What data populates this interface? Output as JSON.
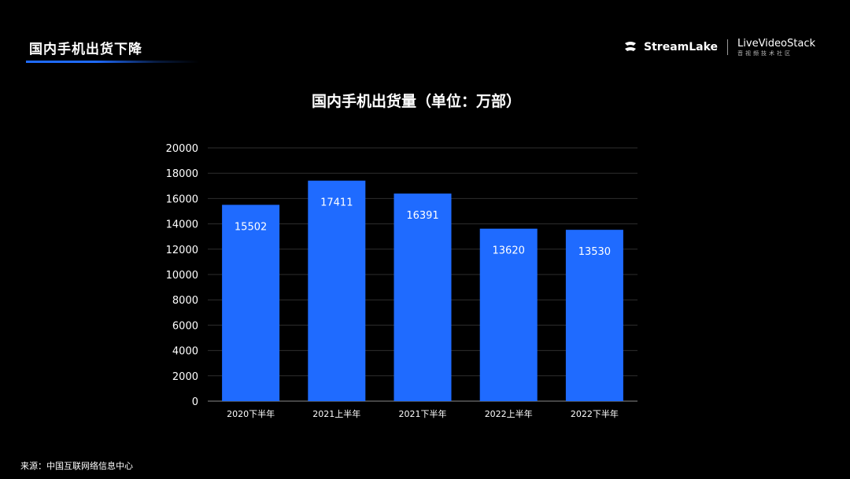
{
  "header": {
    "slide_title": "国内手机出货下降",
    "logo_streamlake": "StreamLake",
    "logo_livevideostack": "LiveVideoStack",
    "logo_livevideostack_sub": "音视频技术社区"
  },
  "colors": {
    "background": "#000000",
    "bar": "#1f6bff",
    "accent": "#1f6bff",
    "grid": "#2e2e2e"
  },
  "chart_data": {
    "type": "bar",
    "title": "国内手机出货量（单位：万部）",
    "categories": [
      "2020下半年",
      "2021上半年",
      "2021下半年",
      "2022上半年",
      "2022下半年"
    ],
    "values": [
      15502,
      17411,
      16391,
      13620,
      13530
    ],
    "ylim": [
      0,
      20000
    ],
    "yticks": [
      0,
      2000,
      4000,
      6000,
      8000,
      10000,
      12000,
      14000,
      16000,
      18000,
      20000
    ],
    "grid": true,
    "data_labels": true
  },
  "footer": {
    "source": "来源：中国互联网络信息中心"
  }
}
